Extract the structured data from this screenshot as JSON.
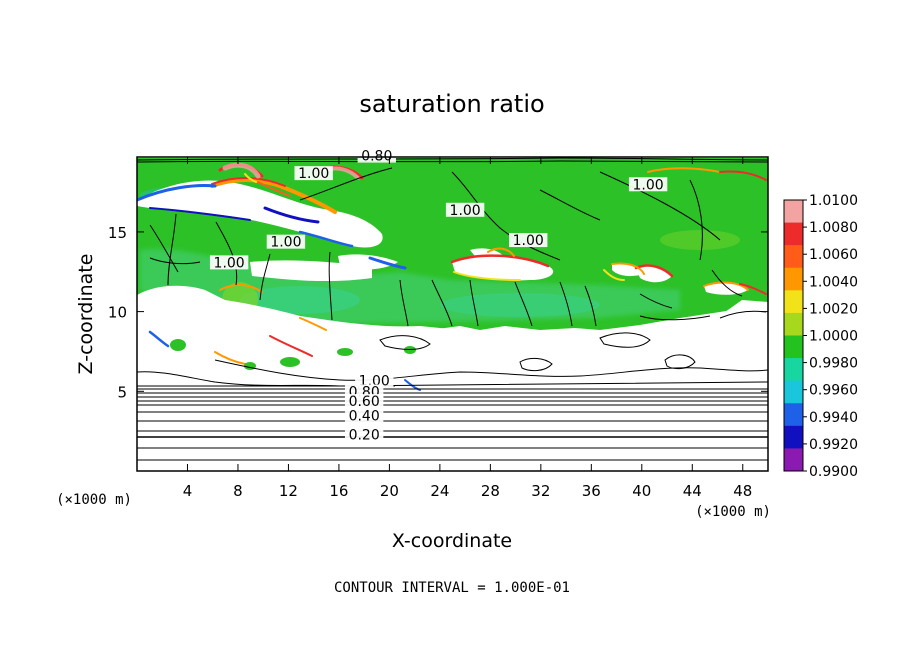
{
  "chart_data": {
    "type": "heatmap",
    "title": "saturation ratio",
    "xlabel": "X-coordinate",
    "ylabel": "Z-coordinate",
    "x_unit": "(x1000 m)",
    "z_unit": "(x1000 m)",
    "xlim": [
      0,
      50
    ],
    "ylim": [
      0,
      19.7
    ],
    "x_ticks": [
      4,
      8,
      12,
      16,
      20,
      24,
      28,
      32,
      36,
      40,
      44,
      48
    ],
    "y_ticks": [
      5,
      10,
      15
    ],
    "colorbar": {
      "levels": [
        "1.0100",
        "1.0080",
        "1.0060",
        "1.0040",
        "1.0020",
        "1.0000",
        "0.9980",
        "0.9960",
        "0.9940",
        "0.9920",
        "0.9900"
      ],
      "colors": [
        "#f4a3a3",
        "#ee2b2b",
        "#ff5c1a",
        "#ff9800",
        "#f2e21a",
        "#a8d81e",
        "#23c21e",
        "#18d6a0",
        "#19c6dc",
        "#1e60e8",
        "#1010c0",
        "#8a1ab0"
      ]
    },
    "contour_labels": [
      {
        "text": "0.80",
        "x": 19.0,
        "z": 19.6
      },
      {
        "text": "1.00",
        "x": 14.0,
        "z": 18.5
      },
      {
        "text": "1.00",
        "x": 26.0,
        "z": 16.2
      },
      {
        "text": "1.00",
        "x": 40.5,
        "z": 17.8
      },
      {
        "text": "1.00",
        "x": 11.8,
        "z": 14.2
      },
      {
        "text": "1.00",
        "x": 31.0,
        "z": 14.3
      },
      {
        "text": "1.00",
        "x": 7.3,
        "z": 12.9
      },
      {
        "text": "1.00",
        "x": 18.8,
        "z": 5.5
      },
      {
        "text": "0.80",
        "x": 18.0,
        "z": 4.8
      },
      {
        "text": "0.60",
        "x": 18.0,
        "z": 4.2
      },
      {
        "text": "0.40",
        "x": 18.0,
        "z": 3.3
      },
      {
        "text": "0.20",
        "x": 18.0,
        "z": 2.1
      }
    ],
    "contour_interval": "CONTOUR INTERVAL = 1.000E-01"
  }
}
